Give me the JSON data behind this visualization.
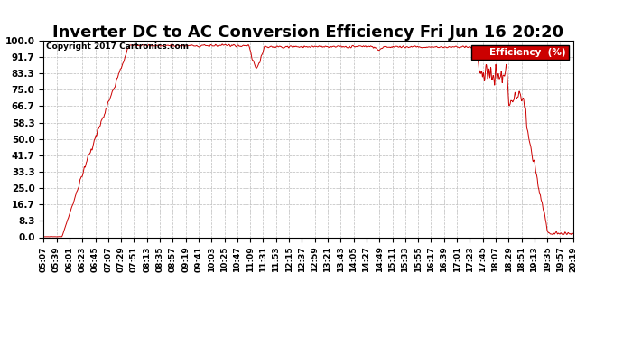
{
  "title": "Inverter DC to AC Conversion Efficiency Fri Jun 16 20:20",
  "copyright": "Copyright 2017 Cartronics.com",
  "legend_label": "Efficiency  (%)",
  "legend_bg": "#cc0000",
  "legend_text_color": "#ffffff",
  "line_color": "#cc0000",
  "background_color": "#ffffff",
  "grid_color": "#bbbbbb",
  "ylim": [
    0.0,
    100.0
  ],
  "yticks": [
    0.0,
    8.3,
    16.7,
    25.0,
    33.3,
    41.7,
    50.0,
    58.3,
    66.7,
    75.0,
    83.3,
    91.7,
    100.0
  ],
  "title_fontsize": 13,
  "xlabel_fontsize": 6.5,
  "ylabel_fontsize": 7.5,
  "x_labels": [
    "05:07",
    "05:39",
    "06:01",
    "06:23",
    "06:45",
    "07:07",
    "07:29",
    "07:51",
    "08:13",
    "08:35",
    "08:57",
    "09:19",
    "09:41",
    "10:03",
    "10:25",
    "10:47",
    "11:09",
    "11:31",
    "11:53",
    "12:15",
    "12:37",
    "12:59",
    "13:21",
    "13:43",
    "14:05",
    "14:27",
    "14:49",
    "15:11",
    "15:33",
    "15:55",
    "16:17",
    "16:39",
    "17:01",
    "17:23",
    "17:45",
    "18:07",
    "18:29",
    "18:51",
    "19:13",
    "19:35",
    "19:57",
    "20:19"
  ]
}
